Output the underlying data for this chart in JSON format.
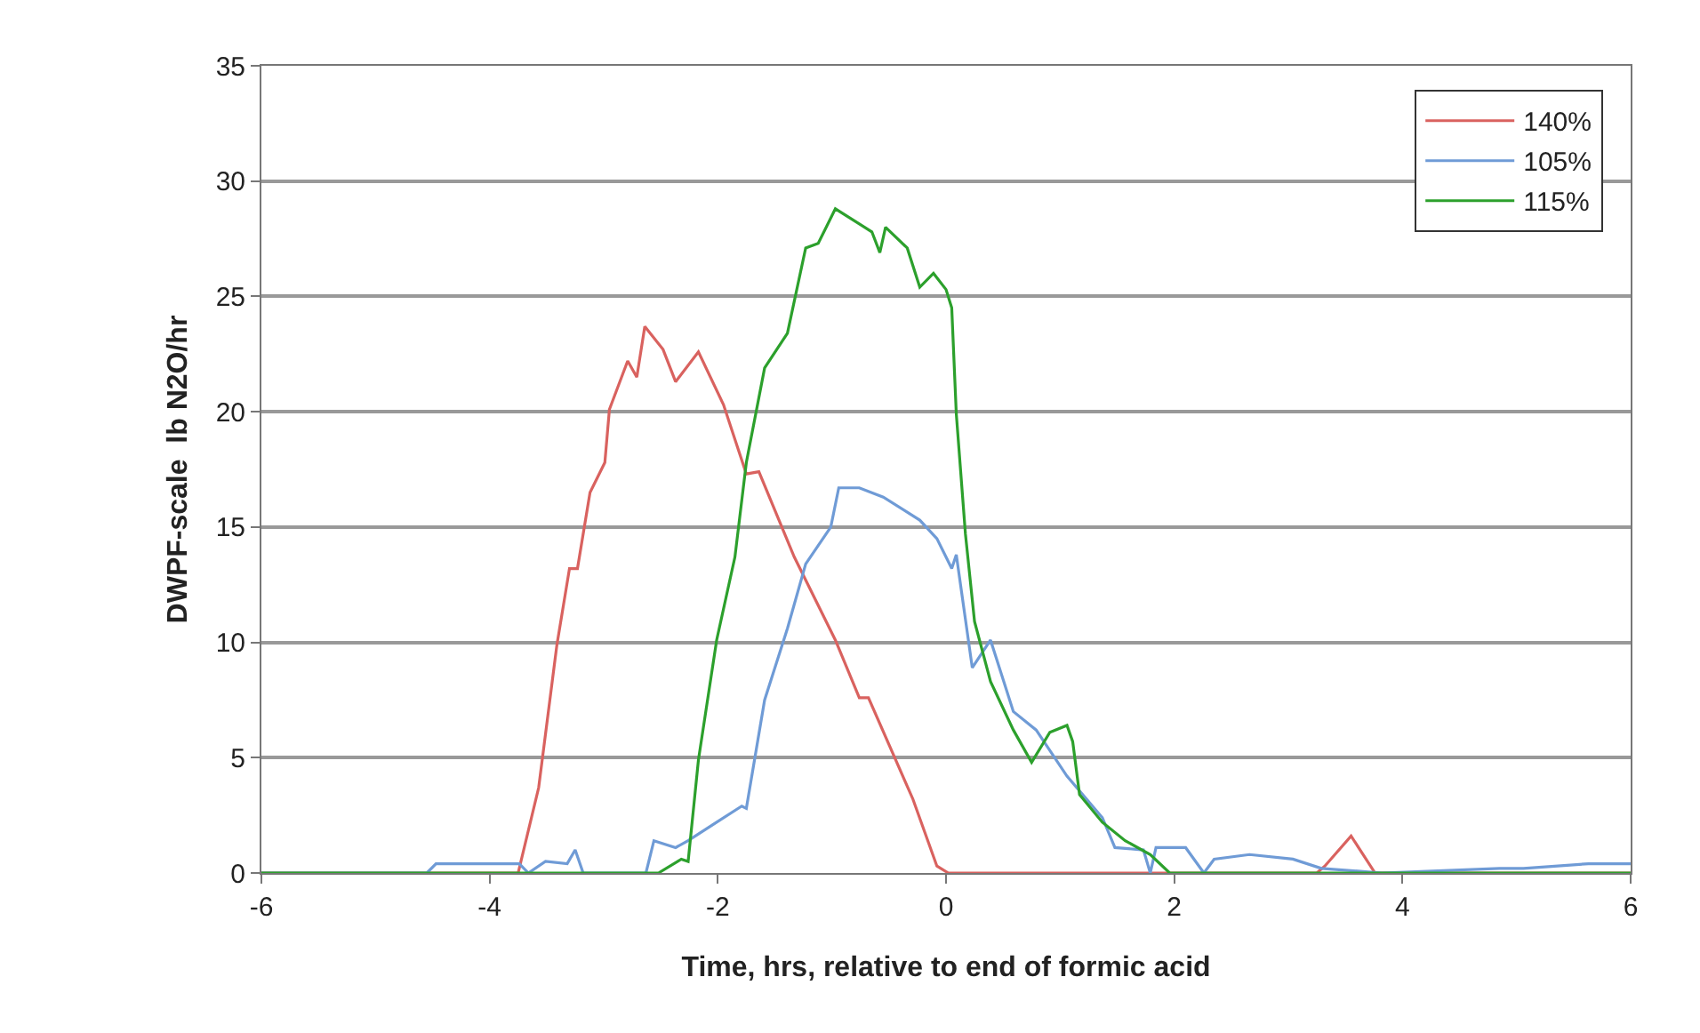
{
  "chart_data": {
    "type": "line",
    "xlabel": "Time, hrs, relative to end of formic acid",
    "ylabel": "DWPF-scale  lb N2O/hr",
    "xlim": [
      -6,
      6
    ],
    "xticks": [
      -6,
      -4,
      -2,
      0,
      2,
      4,
      6
    ],
    "ylim": [
      0,
      35
    ],
    "yticks": [
      0,
      5,
      10,
      15,
      20,
      25,
      30,
      35
    ],
    "grid": "y",
    "legend": "top right",
    "marker": "none",
    "line_style": "solid",
    "series": [
      {
        "name": "140%",
        "color": "#d9625f",
        "x": [
          -6,
          -3.75,
          -3.57,
          -3.41,
          -3.3,
          -3.23,
          -3.12,
          -2.99,
          -2.95,
          -2.79,
          -2.71,
          -2.64,
          -2.48,
          -2.37,
          -2.17,
          -1.95,
          -1.75,
          -1.64,
          -1.33,
          -1.12,
          -0.97,
          -0.76,
          -0.68,
          -0.29,
          -0.08,
          0.02,
          3.25,
          3.32,
          3.55,
          3.76,
          6
        ],
        "values": [
          0,
          0,
          3.7,
          9.9,
          13.2,
          13.2,
          16.5,
          17.8,
          20.1,
          22.2,
          21.5,
          23.7,
          22.7,
          21.3,
          22.6,
          20.3,
          17.3,
          17.4,
          13.7,
          11.6,
          10.1,
          7.6,
          7.6,
          3.2,
          0.3,
          0,
          0,
          0.3,
          1.6,
          0,
          0
        ]
      },
      {
        "name": "105%",
        "color": "#6f9bd6",
        "x": [
          -6,
          -4.55,
          -4.47,
          -3.74,
          -3.66,
          -3.51,
          -3.32,
          -3.25,
          -3.18,
          -2.63,
          -2.56,
          -2.37,
          -2.26,
          -2.01,
          -1.79,
          -1.75,
          -1.59,
          -1.39,
          -1.23,
          -1.01,
          -0.94,
          -0.76,
          -0.55,
          -0.23,
          -0.08,
          0.05,
          0.09,
          0.23,
          0.39,
          0.59,
          0.79,
          1.06,
          1.37,
          1.48,
          1.73,
          1.79,
          1.84,
          2.1,
          2.26,
          2.35,
          2.66,
          3.04,
          3.29,
          3.82,
          4.85,
          5.06,
          5.63,
          6
        ],
        "values": [
          0,
          0,
          0.4,
          0.4,
          0,
          0.5,
          0.4,
          1,
          0,
          0,
          1.4,
          1.1,
          1.4,
          2.2,
          2.9,
          2.8,
          7.5,
          10.6,
          13.4,
          15,
          16.7,
          16.7,
          16.3,
          15.3,
          14.5,
          13.2,
          13.8,
          8.9,
          10.1,
          7,
          6.2,
          4.2,
          2.4,
          1.1,
          1,
          0,
          1.1,
          1.1,
          0,
          0.6,
          0.8,
          0.6,
          0.2,
          0,
          0.2,
          0.2,
          0.4,
          0.4
        ]
      },
      {
        "name": "115%",
        "color": "#2ca02c",
        "x": [
          -6,
          -2.52,
          -2.32,
          -2.26,
          -2.17,
          -2.01,
          -1.85,
          -1.75,
          -1.59,
          -1.39,
          -1.23,
          -1.12,
          -0.97,
          -0.65,
          -0.58,
          -0.53,
          -0.34,
          -0.23,
          -0.11,
          0,
          0.05,
          0.09,
          0.17,
          0.25,
          0.39,
          0.59,
          0.75,
          0.91,
          1.06,
          1.11,
          1.17,
          1.37,
          1.57,
          1.79,
          1.96,
          6
        ],
        "values": [
          0,
          0,
          0.6,
          0.5,
          4.9,
          10.1,
          13.7,
          17.8,
          21.9,
          23.4,
          27.1,
          27.3,
          28.8,
          27.8,
          26.9,
          28,
          27.1,
          25.4,
          26,
          25.3,
          24.5,
          19.9,
          14.7,
          10.9,
          8.3,
          6.2,
          4.8,
          6.1,
          6.4,
          5.7,
          3.4,
          2.2,
          1.4,
          0.8,
          0,
          0
        ]
      }
    ]
  }
}
